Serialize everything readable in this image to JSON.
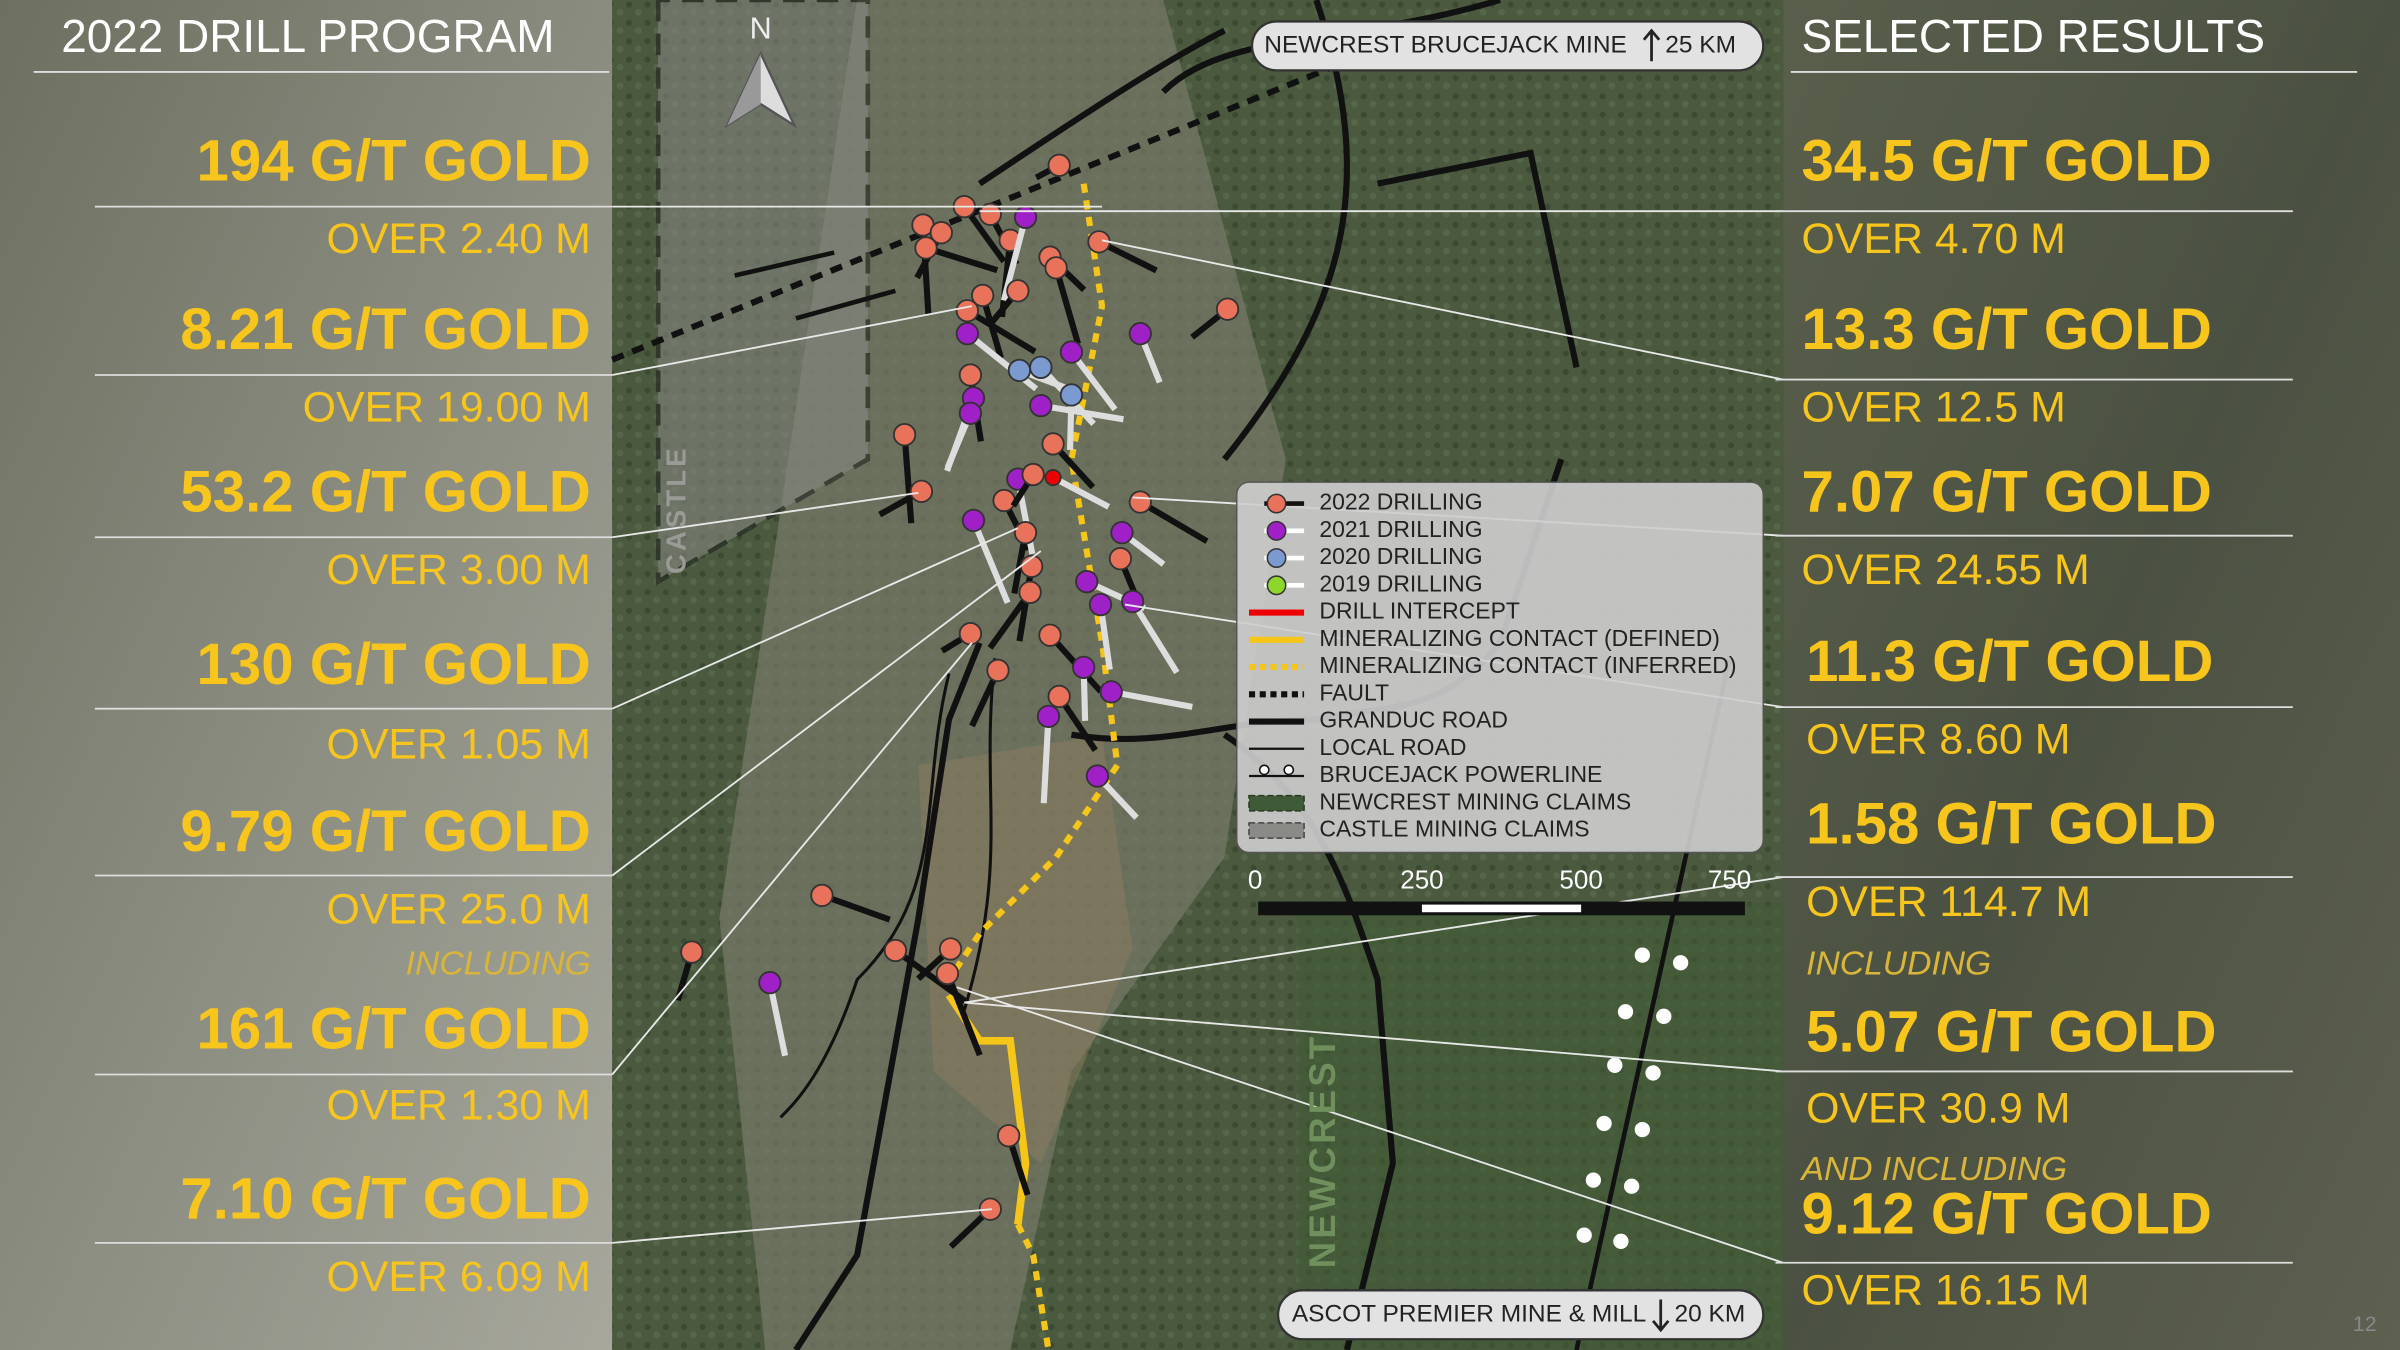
{
  "left_panel": {
    "title": "2022 DRILL PROGRAM",
    "results": [
      {
        "grade": "194 G/T GOLD",
        "interval": "OVER 2.40 M"
      },
      {
        "grade": "8.21 G/T GOLD",
        "interval": "OVER 19.00 M"
      },
      {
        "grade": "53.2 G/T GOLD",
        "interval": "OVER 3.00 M"
      },
      {
        "grade": "130 G/T GOLD",
        "interval": "OVER 1.05 M"
      },
      {
        "grade": "9.79 G/T GOLD",
        "interval": "OVER 25.0 M"
      },
      {
        "label": "INCLUDING",
        "grade": "161 G/T GOLD",
        "interval": "OVER 1.30 M"
      },
      {
        "grade": "7.10 G/T GOLD",
        "interval": "OVER 6.09 M"
      }
    ]
  },
  "right_panel": {
    "title": "SELECTED RESULTS",
    "results": [
      {
        "grade": "34.5 G/T GOLD",
        "interval": "OVER 4.70 M"
      },
      {
        "grade": "13.3 G/T GOLD",
        "interval": "OVER 12.5 M"
      },
      {
        "grade": "7.07 G/T GOLD",
        "interval": "OVER 24.55 M"
      },
      {
        "grade": "11.3 G/T GOLD",
        "interval": "OVER 8.60 M"
      },
      {
        "grade": "1.58 G/T GOLD",
        "interval": "OVER 114.7 M"
      },
      {
        "label": "INCLUDING",
        "grade": "5.07 G/T GOLD",
        "interval": "OVER 30.9 M"
      },
      {
        "label": "AND INCLUDING",
        "grade": "9.12 G/T GOLD",
        "interval": "OVER 16.15 M"
      }
    ]
  },
  "map": {
    "north_label": "N",
    "top_banner": {
      "text": "NEWCREST BRUCEJACK MINE",
      "distance": "25  KM"
    },
    "bottom_banner": {
      "text": "ASCOT PREMIER MINE & MILL",
      "distance": "20 KM"
    },
    "area_labels": [
      "CASTLE",
      "NEWCREST"
    ],
    "legend": [
      "2022   DRILLING",
      "2021   DRILLING",
      "2020   DRILLING",
      "2019   DRILLING",
      "DRILL INTERCEPT",
      "MINERALIZING CONTACT (DEFINED)",
      "MINERALIZING CONTACT (INFERRED)",
      "FAULT",
      "GRANDUC ROAD",
      "LOCAL ROAD",
      "BRUCEJACK POWERLINE",
      "NEWCREST MINING CLAIMS",
      "CASTLE MINING CLAIMS"
    ],
    "scale_labels": [
      "0",
      "250",
      "500",
      "750"
    ]
  },
  "page_number": "12"
}
